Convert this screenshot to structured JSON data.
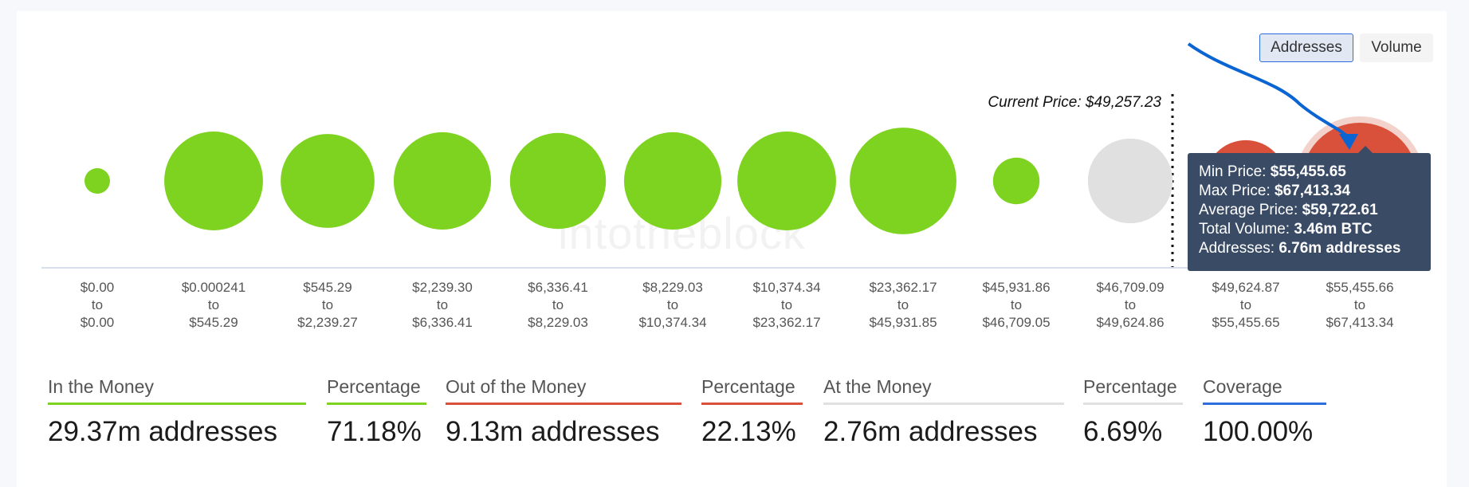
{
  "toggle": {
    "options": [
      "Addresses",
      "Volume"
    ],
    "selected": "Addresses"
  },
  "watermark": "intotheblock",
  "current_price_label": "Current Price: $49,257.23",
  "colors": {
    "in": "#7ed321",
    "out": "#d9513a",
    "at": "#e0e0e0",
    "coverage": "#2f6fdb",
    "tooltip": "#3a4b66",
    "annotation_arrow": "#0a64d2"
  },
  "chart_data": {
    "type": "bubble",
    "current_price": 49257.23,
    "buckets": [
      {
        "from": "$0.00",
        "to": "$0.00",
        "status": "in",
        "size": 0.05
      },
      {
        "from": "$0.000241",
        "to": "$545.29",
        "status": "in",
        "size": 0.72
      },
      {
        "from": "$545.29",
        "to": "$2,239.27",
        "status": "in",
        "size": 0.65
      },
      {
        "from": "$2,239.30",
        "to": "$6,336.41",
        "status": "in",
        "size": 0.7
      },
      {
        "from": "$6,336.41",
        "to": "$8,229.03",
        "status": "in",
        "size": 0.68
      },
      {
        "from": "$8,229.03",
        "to": "$10,374.34",
        "status": "in",
        "size": 0.7
      },
      {
        "from": "$10,374.34",
        "to": "$23,362.17",
        "status": "in",
        "size": 0.72
      },
      {
        "from": "$23,362.17",
        "to": "$45,931.85",
        "status": "in",
        "size": 0.84
      },
      {
        "from": "$45,931.86",
        "to": "$46,709.05",
        "status": "in",
        "size": 0.16
      },
      {
        "from": "$46,709.09",
        "to": "$49,624.86",
        "status": "at",
        "size": 0.53
      },
      {
        "from": "$49,624.87",
        "to": "$55,455.65",
        "status": "out",
        "size": 0.49
      },
      {
        "from": "$55,455.66",
        "to": "$67,413.34",
        "status": "out",
        "size": 1.0,
        "highlighted": true
      }
    ],
    "tooltip": {
      "min_price_label": "Min Price:",
      "min_price": "$55,455.65",
      "max_price_label": "Max Price:",
      "max_price": "$67,413.34",
      "avg_price_label": "Average Price:",
      "avg_price": "$59,722.61",
      "volume_label": "Total Volume:",
      "volume": "3.46m BTC",
      "addresses_label": "Addresses:",
      "addresses": "6.76m addresses"
    }
  },
  "stats": [
    {
      "header": "In the Money",
      "value": "29.37m addresses",
      "color": "#7ed321"
    },
    {
      "header": "Percentage",
      "value": "71.18%",
      "color": "#7ed321"
    },
    {
      "header": "Out of the Money",
      "value": "9.13m addresses",
      "color": "#d9513a"
    },
    {
      "header": "Percentage",
      "value": "22.13%",
      "color": "#d9513a"
    },
    {
      "header": "At the Money",
      "value": "2.76m addresses",
      "color": "#e0e0e0"
    },
    {
      "header": "Percentage",
      "value": "6.69%",
      "color": "#e0e0e0"
    },
    {
      "header": "Coverage",
      "value": "100.00%",
      "color": "#2f6fdb"
    }
  ]
}
